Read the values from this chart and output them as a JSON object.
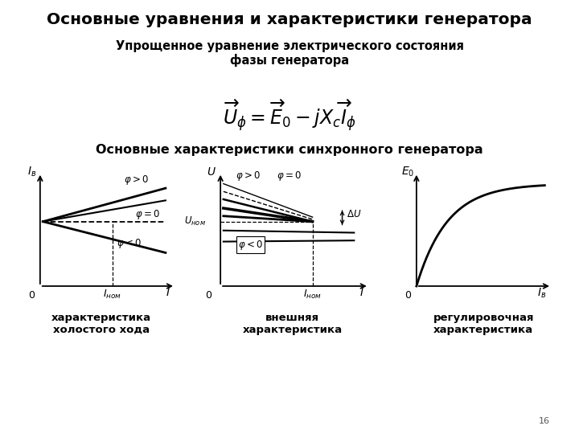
{
  "title": "Основные уравнения и характеристики генератора",
  "subtitle": "Упрощенное уравнение электрического состояния\nфазы генератора",
  "formula": "$\\overrightarrow{U}_{\\phi} = \\overrightarrow{E}_0 - jX_c\\overrightarrow{I}_{\\phi}$",
  "section2": "Основные характеристики синхронного генератора",
  "label1": "характеристика\nхолостого хода",
  "label2": "внешняя\nхарактеристика",
  "label3": "регулировочная\nхарактеристика",
  "page_num": "16",
  "bg_color": "#ffffff",
  "text_color": "#000000"
}
